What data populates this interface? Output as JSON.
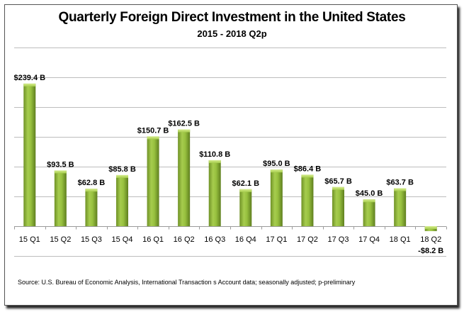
{
  "chart_data": {
    "type": "bar",
    "title": "Quarterly Foreign Direct Investment in the United States",
    "subtitle": "2015 - 2018 Q2p",
    "xlabel": "",
    "ylabel": "",
    "ylim": [
      -50,
      300
    ],
    "gridlines": [
      -50,
      50,
      100,
      150,
      200,
      250,
      300
    ],
    "grid": true,
    "legend": "none",
    "categories": [
      "15 Q1",
      "15 Q2",
      "15 Q3",
      "15 Q4",
      "16 Q1",
      "16 Q2",
      "16 Q3",
      "16 Q4",
      "17 Q1",
      "17 Q2",
      "17 Q3",
      "17 Q4",
      "18 Q1",
      "18 Q2"
    ],
    "values": [
      239.4,
      93.5,
      62.8,
      85.8,
      150.7,
      162.5,
      110.8,
      62.1,
      95.0,
      86.4,
      65.7,
      45.0,
      63.7,
      -8.2
    ],
    "data_labels": [
      "$239.4 B",
      "$93.5 B",
      "$62.8 B",
      "$85.8 B",
      "$150.7 B",
      "$162.5 B",
      "$110.8 B",
      "$62.1 B",
      "$95.0 B",
      "$86.4 B",
      "$65.7 B",
      "$45.0 B",
      "$63.7 B",
      "-$8.2 B"
    ],
    "bar_color": "#8db33a",
    "source": "Source:  U.S. Bureau of Economic Analysis, International Transaction s Account data; seasonally adjusted; p-preliminary"
  }
}
